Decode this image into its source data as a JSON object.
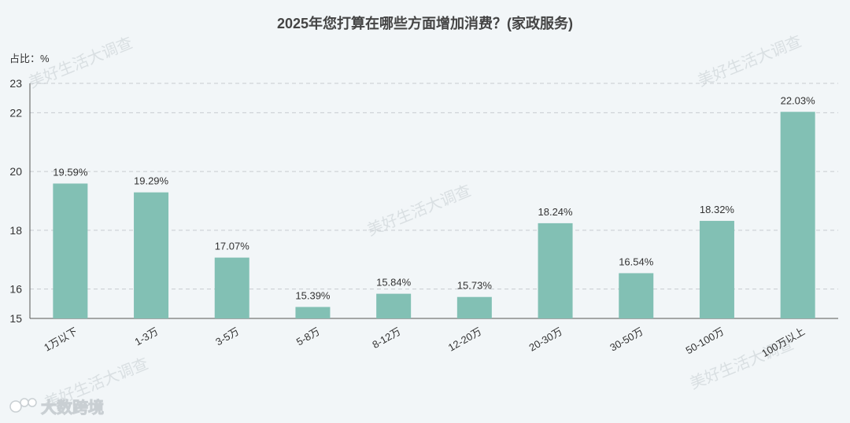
{
  "chart_data": {
    "type": "bar",
    "title": "2025年您打算在哪些方面增加消费？(家政服务)",
    "ylabel": "占比：%",
    "ylim": [
      15,
      23
    ],
    "yticks": [
      15,
      16,
      18,
      20,
      22,
      23
    ],
    "grid": true,
    "categories": [
      "1万以下",
      "1-3万",
      "3-5万",
      "5-8万",
      "8-12万",
      "12-20万",
      "20-30万",
      "30-50万",
      "50-100万",
      "100万以上"
    ],
    "values": [
      19.59,
      19.29,
      17.07,
      15.39,
      15.84,
      15.73,
      18.24,
      16.54,
      18.32,
      22.03
    ],
    "labels": [
      "19.59%",
      "19.29%",
      "17.07%",
      "15.39%",
      "15.84%",
      "15.73%",
      "18.24%",
      "16.54%",
      "18.32%",
      "22.03%"
    ],
    "bar_color": "#82c0b4"
  },
  "watermark": "美好生活大调查",
  "logo": {
    "text": "大数跨境",
    "icon": "bubble-logo-icon"
  }
}
